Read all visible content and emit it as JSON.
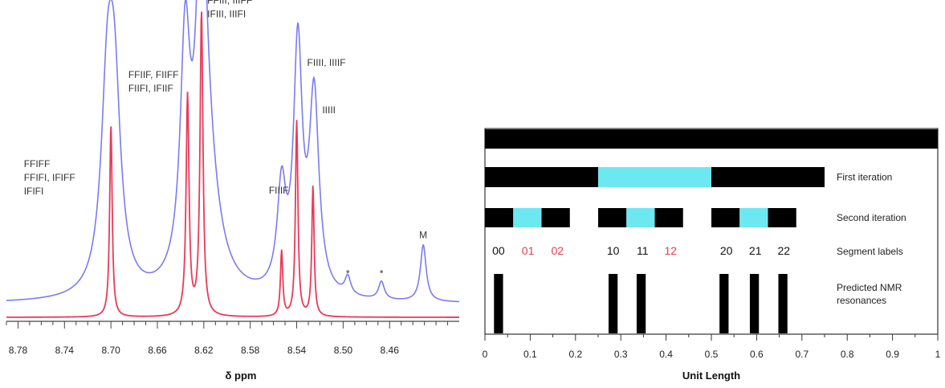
{
  "chart_data": [
    {
      "type": "line",
      "xlabel": "δ ppm",
      "xlim": [
        8.79,
        8.4
      ],
      "x_ticks": [
        "8.78",
        "8.74",
        "8.70",
        "8.66",
        "8.62",
        "8.58",
        "8.54",
        "8.50",
        "8.46"
      ],
      "x_tick_values": [
        8.78,
        8.74,
        8.7,
        8.66,
        8.62,
        8.58,
        8.54,
        8.5,
        8.46
      ],
      "colors": {
        "blue": "#7b7bf0",
        "red": "#e83a5a"
      },
      "series": [
        {
          "color": "blue",
          "baseline": 0.0,
          "peaks": [
            {
              "center": 8.703,
              "height": 0.62,
              "width": 0.0065
            },
            {
              "center": 8.697,
              "height": 0.6,
              "width": 0.0065
            },
            {
              "center": 8.636,
              "height": 0.76,
              "width": 0.005
            },
            {
              "center": 8.622,
              "height": 1.0,
              "width": 0.005
            },
            {
              "center": 8.618,
              "height": 0.42,
              "width": 0.012
            },
            {
              "center": 8.553,
              "height": 0.34,
              "width": 0.0045
            },
            {
              "center": 8.539,
              "height": 0.82,
              "width": 0.0045
            },
            {
              "center": 8.525,
              "height": 0.66,
              "width": 0.005
            },
            {
              "center": 8.496,
              "height": 0.06,
              "width": 0.003
            },
            {
              "center": 8.467,
              "height": 0.06,
              "width": 0.003
            },
            {
              "center": 8.431,
              "height": 0.19,
              "width": 0.003
            }
          ]
        },
        {
          "color": "red",
          "baseline": 0.0,
          "peaks": [
            {
              "center": 8.7,
              "height": 0.62,
              "width": 0.0013
            },
            {
              "center": 8.634,
              "height": 0.71,
              "width": 0.0015
            },
            {
              "center": 8.622,
              "height": 0.98,
              "width": 0.0015
            },
            {
              "center": 8.553,
              "height": 0.21,
              "width": 0.0012
            },
            {
              "center": 8.54,
              "height": 0.63,
              "width": 0.0013
            },
            {
              "center": 8.526,
              "height": 0.42,
              "width": 0.0012
            }
          ]
        }
      ],
      "annotations": [
        {
          "lines": [
            "FFIFF",
            "FFIFI, IFIFF",
            "IFIFI"
          ],
          "x": 8.775,
          "y": 0.46
        },
        {
          "lines": [
            "FFIIF, FIIFF",
            "FIIFI, IFIIF"
          ],
          "x": 8.685,
          "y": 0.76
        },
        {
          "lines": [
            "FFIII, IIIFF",
            "IFIII, IIIFI"
          ],
          "x": 8.617,
          "y": 1.01
        },
        {
          "lines": [
            "FIIIF"
          ],
          "x": 8.564,
          "y": 0.37
        },
        {
          "lines": [
            "FIIII, IIIIF"
          ],
          "x": 8.531,
          "y": 0.8
        },
        {
          "lines": [
            "IIIII"
          ],
          "x": 8.518,
          "y": 0.64
        },
        {
          "lines": [
            "*"
          ],
          "x": 8.496,
          "y": 0.09
        },
        {
          "lines": [
            "*"
          ],
          "x": 8.467,
          "y": 0.09
        },
        {
          "lines": [
            "M"
          ],
          "x": 8.431,
          "y": 0.22
        }
      ]
    },
    {
      "type": "bar",
      "xlabel": "Unit Length",
      "xlim": [
        0,
        1
      ],
      "x_ticks": [
        "0",
        "0.1",
        "0.2",
        "0.3",
        "0.4",
        "0.5",
        "0.6",
        "0.7",
        "0.8",
        "0.9",
        "1"
      ],
      "x_tick_values": [
        0,
        0.1,
        0.2,
        0.3,
        0.4,
        0.5,
        0.6,
        0.7,
        0.8,
        0.9,
        1
      ],
      "colors": {
        "filled": "#000000",
        "removed": "#6ee8f0",
        "red_label": "#e83a5a"
      },
      "rows": [
        {
          "label": "",
          "segments": [
            {
              "start": 0,
              "end": 1,
              "kind": "filled"
            }
          ]
        },
        {
          "label": "First iteration",
          "segments": [
            {
              "start": 0,
              "end": 0.25,
              "kind": "filled"
            },
            {
              "start": 0.25,
              "end": 0.5,
              "kind": "removed"
            },
            {
              "start": 0.5,
              "end": 0.75,
              "kind": "filled"
            }
          ]
        },
        {
          "label": "Second iteration",
          "segments": [
            {
              "start": 0,
              "end": 0.0625,
              "kind": "filled"
            },
            {
              "start": 0.0625,
              "end": 0.125,
              "kind": "removed"
            },
            {
              "start": 0.125,
              "end": 0.1875,
              "kind": "filled"
            },
            {
              "start": 0.25,
              "end": 0.3125,
              "kind": "filled"
            },
            {
              "start": 0.3125,
              "end": 0.375,
              "kind": "removed"
            },
            {
              "start": 0.375,
              "end": 0.4375,
              "kind": "filled"
            },
            {
              "start": 0.5,
              "end": 0.5625,
              "kind": "filled"
            },
            {
              "start": 0.5625,
              "end": 0.625,
              "kind": "removed"
            },
            {
              "start": 0.625,
              "end": 0.6875,
              "kind": "filled"
            }
          ]
        }
      ],
      "segment_labels_title": "Segment labels",
      "segment_labels": [
        {
          "text": "00",
          "x": 0.03,
          "red": false
        },
        {
          "text": "01",
          "x": 0.095,
          "red": true
        },
        {
          "text": "02",
          "x": 0.16,
          "red": true
        },
        {
          "text": "10",
          "x": 0.283,
          "red": false
        },
        {
          "text": "11",
          "x": 0.348,
          "red": false
        },
        {
          "text": "12",
          "x": 0.41,
          "red": true
        },
        {
          "text": "20",
          "x": 0.533,
          "red": false
        },
        {
          "text": "21",
          "x": 0.597,
          "red": false
        },
        {
          "text": "22",
          "x": 0.66,
          "red": false
        }
      ],
      "nmr_title": [
        "Predicted NMR",
        "resonances"
      ],
      "nmr_resonances": [
        0.03,
        0.283,
        0.345,
        0.528,
        0.595,
        0.658
      ],
      "nmr_width": 0.02
    }
  ]
}
